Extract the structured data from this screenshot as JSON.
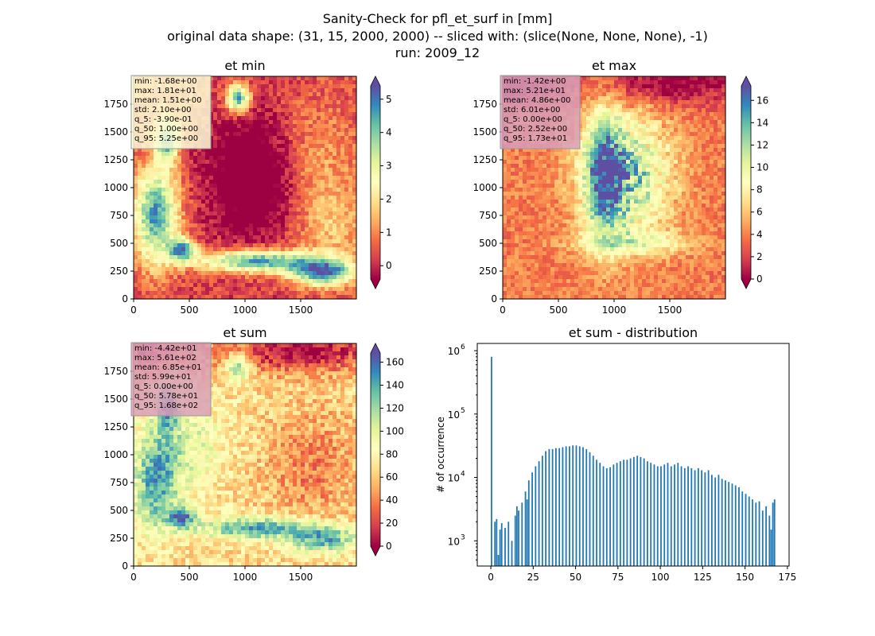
{
  "figure": {
    "suptitle_lines": [
      "Sanity-Check for pfl_et_surf in [mm]",
      "original data shape: (31, 15, 2000, 2000) -- sliced with: (slice(None, None, None), -1)",
      "run: 2009_12"
    ]
  },
  "colormap": {
    "name": "Spectral",
    "stops": [
      "#9e0142",
      "#d53e4f",
      "#f46d43",
      "#fdae61",
      "#fee08b",
      "#ffffbf",
      "#e6f598",
      "#abdda4",
      "#66c2a5",
      "#3288bd",
      "#5e4fa2"
    ]
  },
  "chart_data": [
    {
      "type": "heatmap",
      "title": "et min",
      "xlim": [
        0,
        2000
      ],
      "ylim": [
        0,
        2000
      ],
      "xticks": [
        0,
        500,
        1000,
        1500
      ],
      "yticks": [
        0,
        250,
        500,
        750,
        1000,
        1250,
        1500,
        1750
      ],
      "colorbar": {
        "vmin": -0.4,
        "vmax": 5.4,
        "ticks": [
          0,
          1,
          2,
          3,
          4,
          5
        ],
        "extend": "both"
      },
      "stats": [
        "min: -1.68e+00",
        "max: 1.81e+01",
        "mean: 1.51e+00",
        "std: 2.10e+00",
        "q_5: -3.90e-01",
        "q_50: 1.00e+00",
        "q_95: 5.25e+00"
      ],
      "stats_box_color": "#fdfdd6"
    },
    {
      "type": "heatmap",
      "title": "et max",
      "xlim": [
        0,
        2000
      ],
      "ylim": [
        0,
        2000
      ],
      "xticks": [
        0,
        500,
        1000,
        1500
      ],
      "yticks": [
        0,
        250,
        500,
        750,
        1000,
        1250,
        1500,
        1750
      ],
      "colorbar": {
        "vmin": 0,
        "vmax": 17.3,
        "ticks": [
          0,
          2,
          4,
          6,
          8,
          10,
          12,
          14,
          16
        ],
        "extend": "both"
      },
      "stats": [
        "min: -1.42e+00",
        "max: 5.21e+01",
        "mean: 4.86e+00",
        "std: 6.01e+00",
        "q_5: 0.00e+00",
        "q_50: 2.52e+00",
        "q_95: 1.73e+01"
      ],
      "stats_box_color": "#d9a0b8"
    },
    {
      "type": "heatmap",
      "title": "et sum",
      "xlim": [
        0,
        2000
      ],
      "ylim": [
        0,
        2000
      ],
      "xticks": [
        0,
        500,
        1000,
        1500
      ],
      "yticks": [
        0,
        250,
        500,
        750,
        1000,
        1250,
        1500,
        1750
      ],
      "colorbar": {
        "vmin": 0,
        "vmax": 168,
        "ticks": [
          0,
          20,
          40,
          60,
          80,
          100,
          120,
          140,
          160
        ],
        "extend": "both"
      },
      "stats": [
        "min: -4.42e+01",
        "max: 5.61e+02",
        "mean: 6.85e+01",
        "std: 5.99e+01",
        "q_5: 0.00e+00",
        "q_50: 5.78e+01",
        "q_95: 1.68e+02"
      ],
      "stats_box_color": "#d9a0b8"
    },
    {
      "type": "histogram",
      "title": "et sum - distribution",
      "ylabel": "# of occurrence",
      "yscale": "log",
      "xlim": [
        -8,
        176
      ],
      "ylim": [
        400,
        1300000
      ],
      "xticks": [
        0,
        25,
        50,
        75,
        100,
        125,
        150,
        175
      ],
      "yticks": [
        {
          "value": 1000,
          "label": "10",
          "exp": "3"
        },
        {
          "value": 10000,
          "label": "10",
          "exp": "4"
        },
        {
          "value": 100000,
          "label": "10",
          "exp": "5"
        },
        {
          "value": 1000000,
          "label": "10",
          "exp": "6"
        }
      ],
      "bar_color": "#1f77b4",
      "bin_width": 0.84,
      "bins": [
        [
          0,
          800000
        ],
        [
          2,
          2000
        ],
        [
          3,
          2200
        ],
        [
          4,
          600
        ],
        [
          5,
          1500
        ],
        [
          6,
          1900
        ],
        [
          8,
          1600
        ],
        [
          10,
          2000
        ],
        [
          12,
          1000
        ],
        [
          14,
          2500
        ],
        [
          15,
          3500
        ],
        [
          16,
          3000
        ],
        [
          18,
          4000
        ],
        [
          20,
          6000
        ],
        [
          21,
          4500
        ],
        [
          22,
          9000
        ],
        [
          24,
          12000
        ],
        [
          26,
          15000
        ],
        [
          28,
          18000
        ],
        [
          30,
          22000
        ],
        [
          32,
          26000
        ],
        [
          34,
          28000
        ],
        [
          36,
          28000
        ],
        [
          38,
          29000
        ],
        [
          40,
          29000
        ],
        [
          42,
          30000
        ],
        [
          44,
          31000
        ],
        [
          46,
          31000
        ],
        [
          48,
          32000
        ],
        [
          50,
          32000
        ],
        [
          52,
          31000
        ],
        [
          54,
          30000
        ],
        [
          56,
          28000
        ],
        [
          58,
          25000
        ],
        [
          60,
          22000
        ],
        [
          62,
          19000
        ],
        [
          64,
          17000
        ],
        [
          66,
          15000
        ],
        [
          68,
          14000
        ],
        [
          70,
          14500
        ],
        [
          72,
          16000
        ],
        [
          74,
          17000
        ],
        [
          76,
          18000
        ],
        [
          78,
          19000
        ],
        [
          80,
          19000
        ],
        [
          82,
          20000
        ],
        [
          84,
          21000
        ],
        [
          86,
          22000
        ],
        [
          88,
          21000
        ],
        [
          90,
          20000
        ],
        [
          92,
          18000
        ],
        [
          94,
          17000
        ],
        [
          96,
          16000
        ],
        [
          98,
          15000
        ],
        [
          100,
          15000
        ],
        [
          102,
          16000
        ],
        [
          104,
          17000
        ],
        [
          106,
          15000
        ],
        [
          108,
          16000
        ],
        [
          110,
          17000
        ],
        [
          112,
          15000
        ],
        [
          114,
          14000
        ],
        [
          116,
          15000
        ],
        [
          118,
          14000
        ],
        [
          120,
          13000
        ],
        [
          122,
          14000
        ],
        [
          124,
          13000
        ],
        [
          126,
          12000
        ],
        [
          128,
          13000
        ],
        [
          130,
          11000
        ],
        [
          132,
          10000
        ],
        [
          134,
          11000
        ],
        [
          136,
          9500
        ],
        [
          138,
          9000
        ],
        [
          140,
          8500
        ],
        [
          142,
          8000
        ],
        [
          144,
          7500
        ],
        [
          146,
          7000
        ],
        [
          148,
          6000
        ],
        [
          150,
          5500
        ],
        [
          152,
          5000
        ],
        [
          154,
          4500
        ],
        [
          156,
          4000
        ],
        [
          158,
          4200
        ],
        [
          160,
          3000
        ],
        [
          162,
          3500
        ],
        [
          164,
          2500
        ],
        [
          165,
          1500
        ],
        [
          166,
          4000
        ],
        [
          167,
          4500
        ]
      ]
    }
  ]
}
